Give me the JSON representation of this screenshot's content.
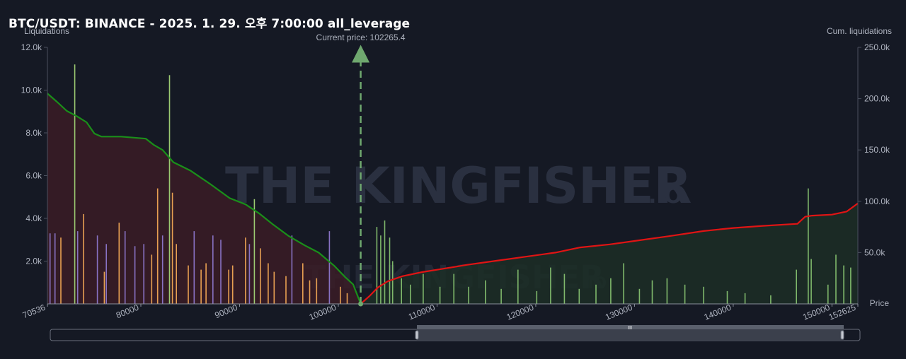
{
  "title": "BTC/USDT: BINANCE - 2025. 1. 29. 오후 7:00:00 all_leverage",
  "watermark": {
    "main": "THE KINGFISHER",
    "suffix": ".IO"
  },
  "current_price_label": "Current price: 102265.4",
  "slider": {
    "handle_label": "III"
  },
  "colors": {
    "background": "#151924",
    "bar_small": "#e8a052",
    "bar_mid": "#8872c4",
    "bar_high": "#9ccb72",
    "bar_right": "#7fb86b",
    "short_cum_line": "#1a8f1a",
    "long_cum_line": "#e01414",
    "short_fill": "#3a1c26",
    "long_fill": "#1c2e26",
    "current_price_arrow": "#6fa86f"
  },
  "chart_data": {
    "type": "bar",
    "xlabel": "Price",
    "ylabel_left": "Liquidations",
    "ylabel_right": "Cum. liquidations",
    "xlim": [
      70536,
      152625
    ],
    "ylim_left": [
      0,
      12000
    ],
    "ylim_right": [
      0,
      250000
    ],
    "x_ticks": [
      70536,
      80000,
      90000,
      100000,
      110000,
      120000,
      130000,
      140000,
      150000,
      152625
    ],
    "x_tick_labels": [
      "70536",
      "80000",
      "90000",
      "100000",
      "110000",
      "120000",
      "130000",
      "140000",
      "150000",
      "152625"
    ],
    "y_left_ticks": [
      2000,
      4000,
      6000,
      8000,
      10000,
      12000
    ],
    "y_left_tick_labels": [
      "2.0k",
      "4.0k",
      "6.0k",
      "8.0k",
      "10.0k",
      "12.0k"
    ],
    "y_right_ticks": [
      50000,
      100000,
      150000,
      200000,
      250000
    ],
    "y_right_tick_labels": [
      "50.0k",
      "100.0k",
      "150.0k",
      "200.0k",
      "250.0k"
    ],
    "current_price": 102265.4,
    "grid": false,
    "bars": [
      {
        "x": 70800,
        "y": 3300,
        "c": "mid"
      },
      {
        "x": 71300,
        "y": 3300,
        "c": "mid"
      },
      {
        "x": 71900,
        "y": 3100,
        "c": "small"
      },
      {
        "x": 73300,
        "y": 11200,
        "c": "high"
      },
      {
        "x": 73600,
        "y": 3400,
        "c": "mid"
      },
      {
        "x": 74200,
        "y": 4200,
        "c": "small"
      },
      {
        "x": 75600,
        "y": 3200,
        "c": "mid"
      },
      {
        "x": 76300,
        "y": 1500,
        "c": "small"
      },
      {
        "x": 76500,
        "y": 2800,
        "c": "mid"
      },
      {
        "x": 77800,
        "y": 3800,
        "c": "small"
      },
      {
        "x": 78400,
        "y": 3400,
        "c": "mid"
      },
      {
        "x": 79400,
        "y": 2700,
        "c": "mid"
      },
      {
        "x": 80300,
        "y": 2800,
        "c": "mid"
      },
      {
        "x": 81100,
        "y": 2300,
        "c": "small"
      },
      {
        "x": 81700,
        "y": 5400,
        "c": "small"
      },
      {
        "x": 82200,
        "y": 3200,
        "c": "mid"
      },
      {
        "x": 82900,
        "y": 10700,
        "c": "high"
      },
      {
        "x": 83200,
        "y": 5200,
        "c": "small"
      },
      {
        "x": 83600,
        "y": 2800,
        "c": "small"
      },
      {
        "x": 84800,
        "y": 1800,
        "c": "small"
      },
      {
        "x": 85400,
        "y": 3400,
        "c": "mid"
      },
      {
        "x": 86100,
        "y": 1600,
        "c": "small"
      },
      {
        "x": 86600,
        "y": 1900,
        "c": "small"
      },
      {
        "x": 87300,
        "y": 3200,
        "c": "mid"
      },
      {
        "x": 88100,
        "y": 3000,
        "c": "mid"
      },
      {
        "x": 88900,
        "y": 1600,
        "c": "small"
      },
      {
        "x": 89300,
        "y": 1800,
        "c": "small"
      },
      {
        "x": 90600,
        "y": 3100,
        "c": "small"
      },
      {
        "x": 91000,
        "y": 2800,
        "c": "mid"
      },
      {
        "x": 91500,
        "y": 4900,
        "c": "high"
      },
      {
        "x": 92100,
        "y": 2600,
        "c": "small"
      },
      {
        "x": 92900,
        "y": 1900,
        "c": "small"
      },
      {
        "x": 93500,
        "y": 1500,
        "c": "small"
      },
      {
        "x": 94700,
        "y": 1300,
        "c": "small"
      },
      {
        "x": 95300,
        "y": 3200,
        "c": "mid"
      },
      {
        "x": 96400,
        "y": 1900,
        "c": "small"
      },
      {
        "x": 97100,
        "y": 1100,
        "c": "small"
      },
      {
        "x": 97800,
        "y": 1200,
        "c": "small"
      },
      {
        "x": 99100,
        "y": 3400,
        "c": "mid"
      },
      {
        "x": 100200,
        "y": 800,
        "c": "small"
      },
      {
        "x": 100900,
        "y": 500,
        "c": "small"
      },
      {
        "x": 103900,
        "y": 3600,
        "c": "right"
      },
      {
        "x": 104300,
        "y": 3200,
        "c": "right"
      },
      {
        "x": 104700,
        "y": 3900,
        "c": "right"
      },
      {
        "x": 105200,
        "y": 3100,
        "c": "right"
      },
      {
        "x": 105500,
        "y": 2000,
        "c": "right"
      },
      {
        "x": 106400,
        "y": 1200,
        "c": "right"
      },
      {
        "x": 107300,
        "y": 900,
        "c": "right"
      },
      {
        "x": 108600,
        "y": 1400,
        "c": "right"
      },
      {
        "x": 110300,
        "y": 800,
        "c": "right"
      },
      {
        "x": 111700,
        "y": 1400,
        "c": "right"
      },
      {
        "x": 113200,
        "y": 800,
        "c": "right"
      },
      {
        "x": 114900,
        "y": 1100,
        "c": "right"
      },
      {
        "x": 116500,
        "y": 700,
        "c": "right"
      },
      {
        "x": 118200,
        "y": 1600,
        "c": "right"
      },
      {
        "x": 120100,
        "y": 600,
        "c": "right"
      },
      {
        "x": 121500,
        "y": 1700,
        "c": "right"
      },
      {
        "x": 122900,
        "y": 1400,
        "c": "right"
      },
      {
        "x": 124400,
        "y": 700,
        "c": "right"
      },
      {
        "x": 126100,
        "y": 900,
        "c": "right"
      },
      {
        "x": 127600,
        "y": 1200,
        "c": "right"
      },
      {
        "x": 128900,
        "y": 1900,
        "c": "right"
      },
      {
        "x": 130500,
        "y": 700,
        "c": "right"
      },
      {
        "x": 131800,
        "y": 1100,
        "c": "right"
      },
      {
        "x": 133300,
        "y": 1200,
        "c": "right"
      },
      {
        "x": 135100,
        "y": 900,
        "c": "right"
      },
      {
        "x": 137000,
        "y": 800,
        "c": "right"
      },
      {
        "x": 139400,
        "y": 600,
        "c": "right"
      },
      {
        "x": 141200,
        "y": 500,
        "c": "right"
      },
      {
        "x": 143800,
        "y": 400,
        "c": "right"
      },
      {
        "x": 146400,
        "y": 1600,
        "c": "right"
      },
      {
        "x": 147600,
        "y": 5400,
        "c": "right"
      },
      {
        "x": 147900,
        "y": 2100,
        "c": "right"
      },
      {
        "x": 149600,
        "y": 900,
        "c": "right"
      },
      {
        "x": 150400,
        "y": 2300,
        "c": "right"
      },
      {
        "x": 151200,
        "y": 1800,
        "c": "right"
      },
      {
        "x": 151900,
        "y": 1700,
        "c": "right"
      }
    ],
    "series": [
      {
        "name": "short_cum",
        "points": [
          [
            70536,
            205000
          ],
          [
            71500,
            197000
          ],
          [
            72500,
            188000
          ],
          [
            73500,
            183000
          ],
          [
            74500,
            177000
          ],
          [
            75300,
            166000
          ],
          [
            76000,
            163000
          ],
          [
            78000,
            163000
          ],
          [
            80500,
            161000
          ],
          [
            81300,
            155000
          ],
          [
            82200,
            150000
          ],
          [
            83300,
            138000
          ],
          [
            85000,
            130000
          ],
          [
            87000,
            117000
          ],
          [
            89000,
            103000
          ],
          [
            90600,
            97000
          ],
          [
            92000,
            88000
          ],
          [
            93300,
            78000
          ],
          [
            95000,
            66000
          ],
          [
            96600,
            57000
          ],
          [
            98000,
            50000
          ],
          [
            99600,
            37000
          ],
          [
            100700,
            26000
          ],
          [
            101500,
            19000
          ],
          [
            102265,
            0
          ]
        ]
      },
      {
        "name": "long_cum",
        "points": [
          [
            102265,
            0
          ],
          [
            103200,
            8000
          ],
          [
            104000,
            16000
          ],
          [
            105000,
            22000
          ],
          [
            106500,
            27000
          ],
          [
            108500,
            31000
          ],
          [
            110500,
            34000
          ],
          [
            113000,
            38000
          ],
          [
            116000,
            42000
          ],
          [
            119000,
            46000
          ],
          [
            122000,
            50000
          ],
          [
            124500,
            55000
          ],
          [
            127500,
            58000
          ],
          [
            130500,
            62000
          ],
          [
            133500,
            66000
          ],
          [
            137000,
            71000
          ],
          [
            140000,
            74000
          ],
          [
            143000,
            76000
          ],
          [
            146500,
            78000
          ],
          [
            147300,
            85000
          ],
          [
            148000,
            86000
          ],
          [
            150000,
            87000
          ],
          [
            151500,
            90000
          ],
          [
            152625,
            98000
          ]
        ]
      }
    ]
  }
}
